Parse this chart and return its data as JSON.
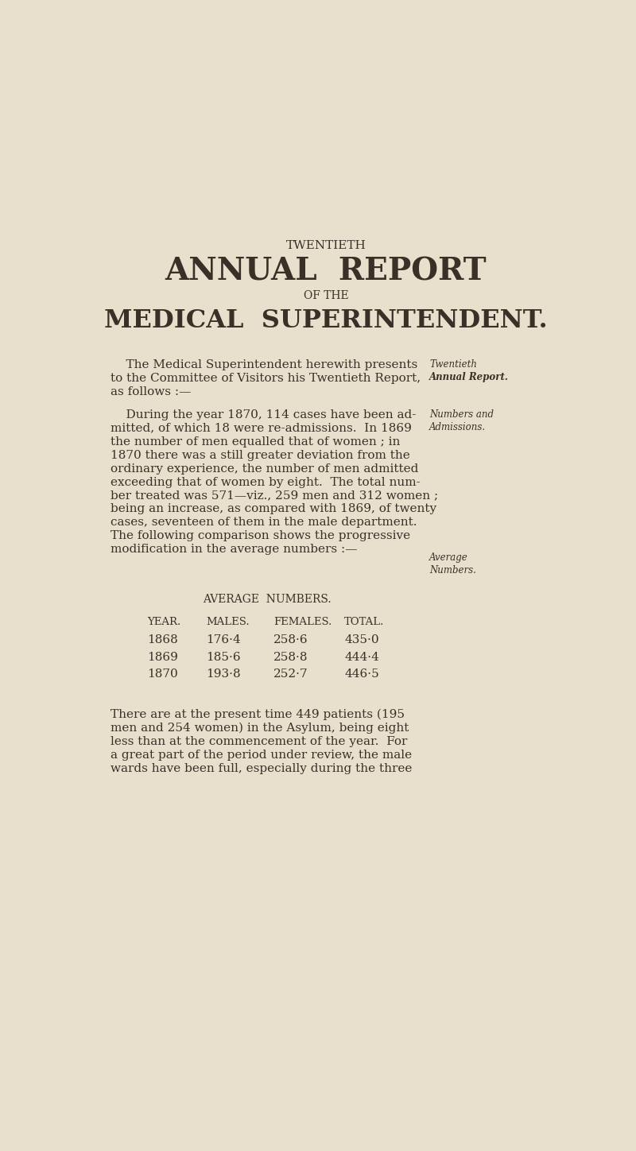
{
  "background_color": "#e8e0cc",
  "text_color": "#3a3028",
  "page_width": 8.0,
  "page_height": 14.48,
  "title_line1": "TWENTIETH",
  "title_line2": "ANNUAL  REPORT",
  "title_line3": "OF THE",
  "title_line4": "MEDICAL  SUPERINTENDENT.",
  "para1_main_lines": [
    "    The Medical Superintendent herewith presents",
    "to the Committee of Visitors his Twentieth Report,",
    "as follows :—"
  ],
  "para1_side_line1": "Twentieth",
  "para1_side_line2": "Annual Report.",
  "para2_main_lines": [
    "    During the year 1870, 114 cases have been ad-",
    "mitted, of which 18 were re-admissions.  In 1869",
    "the number of men equalled that of women ; in",
    "1870 there was a still greater deviation from the",
    "ordinary experience, the number of men admitted",
    "exceeding that of women by eight.  The total num-",
    "ber treated was 571—viz., 259 men and 312 women ;",
    "being an increase, as compared with 1869, of twenty",
    "cases, seventeen of them in the male department.",
    "The following comparison shows the progressive",
    "modification in the average numbers :—"
  ],
  "para2_side_line1": "Numbers and",
  "para2_side_line2": "Admissions.",
  "avg_side_line1": "Average",
  "avg_side_line2": "Numbers.",
  "table_title": "AVERAGE  NUMBERS.",
  "table_headers": [
    "YEAR.",
    "MALES.",
    "FEMALES.",
    "TOTAL."
  ],
  "table_rows": [
    [
      "1868",
      "176·4",
      "258·6",
      "435·0"
    ],
    [
      "1869",
      "185·6",
      "258·8",
      "444·4"
    ],
    [
      "1870",
      "193·8",
      "252·7",
      "446·5"
    ]
  ],
  "para3_main_lines": [
    "There are at the present time 449 patients (195",
    "men and 254 women) in the Asylum, being eight",
    "less than at the commencement of the year.  For",
    "a great part of the period under review, the male",
    "wards have been full, especially during the three"
  ]
}
